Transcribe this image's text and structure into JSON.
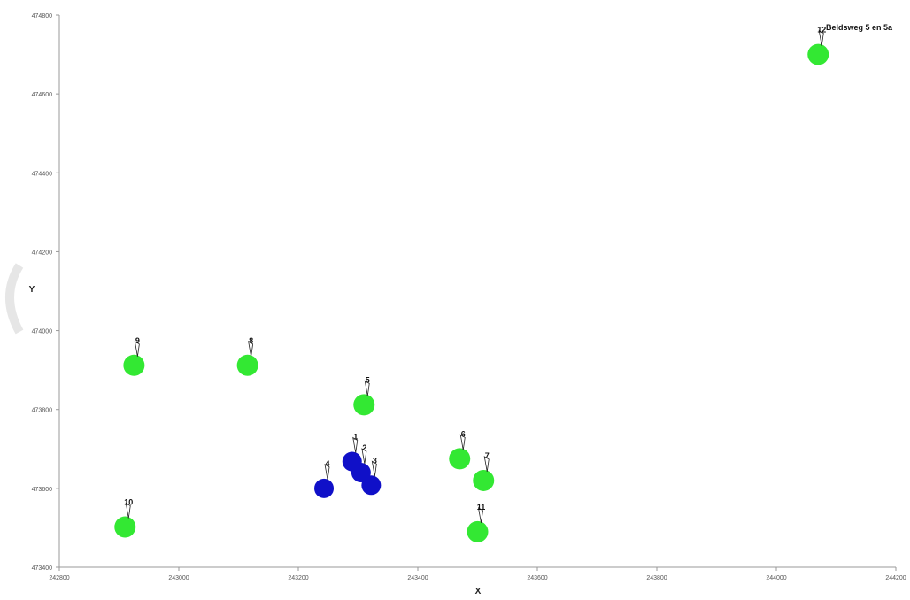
{
  "chart_data": {
    "type": "scatter",
    "title": "Beldsweg 5 en 5a",
    "xlabel": "X",
    "ylabel": "Y",
    "xlim": [
      242800,
      244200
    ],
    "ylim": [
      473400,
      474800
    ],
    "x_ticks": [
      "242800",
      "243000",
      "243200",
      "243400",
      "243600",
      "243800",
      "244000",
      "244200"
    ],
    "y_ticks": [
      "474800",
      "474600",
      "474400",
      "474200",
      "474000",
      "473800",
      "473600",
      "473400"
    ],
    "grid": false,
    "colors": {
      "blue_group": "#1010c8",
      "green_group": "#33e833"
    },
    "points": [
      {
        "label": "1",
        "x": 243290,
        "y": 473668,
        "color": "blue"
      },
      {
        "label": "2",
        "x": 243305,
        "y": 473640,
        "color": "blue"
      },
      {
        "label": "3",
        "x": 243322,
        "y": 473608,
        "color": "blue"
      },
      {
        "label": "4",
        "x": 243243,
        "y": 473600,
        "color": "blue"
      },
      {
        "label": "5",
        "x": 243310,
        "y": 473812,
        "color": "green"
      },
      {
        "label": "6",
        "x": 243470,
        "y": 473675,
        "color": "green"
      },
      {
        "label": "7",
        "x": 243510,
        "y": 473620,
        "color": "green"
      },
      {
        "label": "8",
        "x": 243115,
        "y": 473912,
        "color": "green"
      },
      {
        "label": "9",
        "x": 242925,
        "y": 473912,
        "color": "green"
      },
      {
        "label": "10",
        "x": 242910,
        "y": 473502,
        "color": "green"
      },
      {
        "label": "11",
        "x": 243500,
        "y": 473490,
        "color": "green"
      },
      {
        "label": "12",
        "x": 244070,
        "y": 474700,
        "color": "green"
      }
    ]
  }
}
